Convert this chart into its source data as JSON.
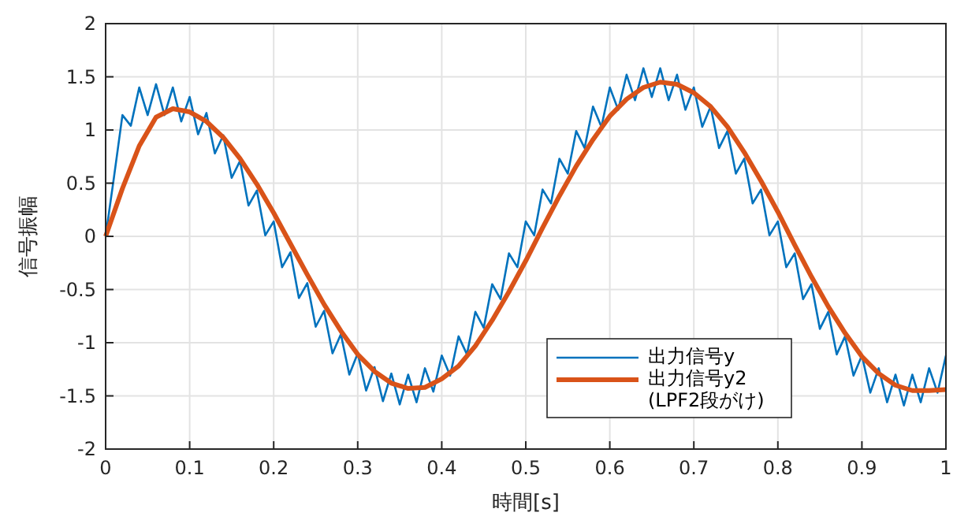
{
  "chart_data": {
    "type": "line",
    "xlabel": "時間[s]",
    "ylabel": "信号振幅",
    "xlim": [
      0,
      1
    ],
    "ylim": [
      -2,
      2
    ],
    "xticks": [
      0,
      0.1,
      0.2,
      0.3,
      0.4,
      0.5,
      0.6,
      0.7,
      0.8,
      0.9,
      1
    ],
    "yticks": [
      -2,
      -1.5,
      -1,
      -0.5,
      0,
      0.5,
      1,
      1.5,
      2
    ],
    "grid": true,
    "legend": "bottom right",
    "line_style": "solid",
    "marker": "none",
    "series": [
      {
        "name": "出力信号y",
        "color": "#0072bd",
        "x": [
          0,
          0.01,
          0.02,
          0.03,
          0.04,
          0.05,
          0.06,
          0.07,
          0.08,
          0.09,
          0.1,
          0.11,
          0.12,
          0.13,
          0.14,
          0.15,
          0.16,
          0.17,
          0.18,
          0.19,
          0.2,
          0.21,
          0.22,
          0.23,
          0.24,
          0.25,
          0.26,
          0.27,
          0.28,
          0.29,
          0.3,
          0.31,
          0.32,
          0.33,
          0.34,
          0.35,
          0.36,
          0.37,
          0.38,
          0.39,
          0.4,
          0.41,
          0.42,
          0.43,
          0.44,
          0.45,
          0.46,
          0.47,
          0.48,
          0.49,
          0.5,
          0.51,
          0.52,
          0.53,
          0.54,
          0.55,
          0.56,
          0.57,
          0.58,
          0.59,
          0.6,
          0.61,
          0.62,
          0.63,
          0.64,
          0.65,
          0.66,
          0.67,
          0.68,
          0.69,
          0.7,
          0.71,
          0.72,
          0.73,
          0.74,
          0.75,
          0.76,
          0.77,
          0.78,
          0.79,
          0.8,
          0.81,
          0.82,
          0.83,
          0.84,
          0.85,
          0.86,
          0.87,
          0.88,
          0.89,
          0.9,
          0.91,
          0.92,
          0.93,
          0.94,
          0.95,
          0.96,
          0.97,
          0.98,
          0.99,
          1
        ],
        "values": [
          0,
          0.56,
          1.14,
          1.04,
          1.4,
          1.14,
          1.43,
          1.14,
          1.4,
          1.08,
          1.31,
          0.96,
          1.16,
          0.78,
          0.95,
          0.55,
          0.71,
          0.29,
          0.43,
          0.01,
          0.14,
          -0.29,
          -0.15,
          -0.58,
          -0.44,
          -0.85,
          -0.7,
          -1.1,
          -0.92,
          -1.3,
          -1.1,
          -1.45,
          -1.23,
          -1.55,
          -1.29,
          -1.58,
          -1.3,
          -1.56,
          -1.24,
          -1.46,
          -1.12,
          -1.31,
          -0.94,
          -1.11,
          -0.71,
          -0.86,
          -0.45,
          -0.59,
          -0.16,
          -0.29,
          0.14,
          0.01,
          0.44,
          0.31,
          0.73,
          0.59,
          0.99,
          0.83,
          1.22,
          1.03,
          1.4,
          1.19,
          1.52,
          1.28,
          1.58,
          1.31,
          1.58,
          1.28,
          1.52,
          1.19,
          1.4,
          1.03,
          1.22,
          0.83,
          0.99,
          0.59,
          0.73,
          0.31,
          0.44,
          0.01,
          0.14,
          -0.29,
          -0.16,
          -0.59,
          -0.45,
          -0.87,
          -0.71,
          -1.11,
          -0.94,
          -1.31,
          -1.12,
          -1.47,
          -1.24,
          -1.56,
          -1.3,
          -1.59,
          -1.3,
          -1.56,
          -1.24,
          -1.47,
          -1.12
        ]
      },
      {
        "name": "出力信号y2\n(LPF2段がけ)",
        "color": "#d95319",
        "x": [
          0,
          0.02,
          0.04,
          0.06,
          0.08,
          0.1,
          0.12,
          0.14,
          0.16,
          0.18,
          0.2,
          0.22,
          0.24,
          0.26,
          0.28,
          0.3,
          0.32,
          0.34,
          0.36,
          0.38,
          0.4,
          0.42,
          0.44,
          0.46,
          0.48,
          0.5,
          0.52,
          0.54,
          0.56,
          0.58,
          0.6,
          0.62,
          0.64,
          0.66,
          0.68,
          0.7,
          0.72,
          0.74,
          0.76,
          0.78,
          0.8,
          0.82,
          0.84,
          0.86,
          0.88,
          0.9,
          0.92,
          0.94,
          0.96,
          0.98,
          1
        ],
        "values": [
          0,
          0.45,
          0.85,
          1.12,
          1.2,
          1.17,
          1.08,
          0.93,
          0.73,
          0.49,
          0.22,
          -0.07,
          -0.36,
          -0.64,
          -0.89,
          -1.11,
          -1.27,
          -1.38,
          -1.43,
          -1.42,
          -1.34,
          -1.22,
          -1.03,
          -0.79,
          -0.52,
          -0.23,
          0.08,
          0.38,
          0.66,
          0.91,
          1.13,
          1.29,
          1.4,
          1.45,
          1.43,
          1.35,
          1.22,
          1.03,
          0.79,
          0.52,
          0.23,
          -0.08,
          -0.38,
          -0.66,
          -0.91,
          -1.13,
          -1.29,
          -1.4,
          -1.45,
          -1.45,
          -1.44
        ]
      }
    ]
  }
}
